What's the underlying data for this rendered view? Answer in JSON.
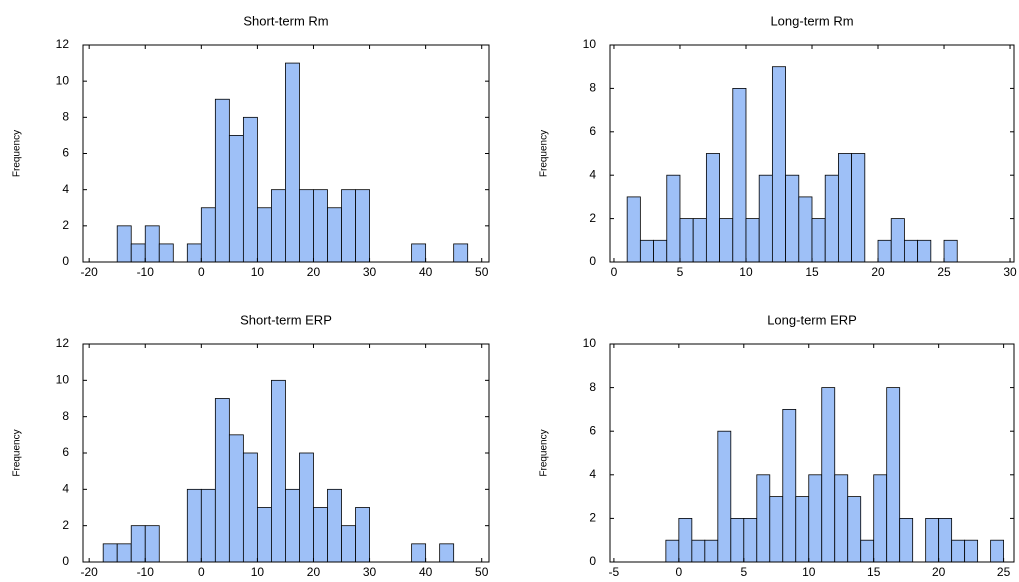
{
  "chart_data": [
    {
      "type": "histogram",
      "title": "Short-term Rm",
      "ylabel": "Frequency",
      "color": "#9ec0f7",
      "bins": [
        -15,
        -12.5,
        -10,
        -7.5,
        -5,
        -2.5,
        0,
        2.5,
        5,
        7.5,
        10,
        12.5,
        15,
        17.5,
        20,
        22.5,
        25,
        27.5,
        30,
        32.5,
        35,
        37.5,
        40,
        42.5,
        45,
        47.5
      ],
      "counts": [
        2,
        1,
        2,
        1,
        0,
        1,
        3,
        9,
        7,
        8,
        3,
        4,
        11,
        4,
        4,
        3,
        4,
        4,
        0,
        0,
        0,
        1,
        0,
        0,
        1
      ],
      "xlim": [
        -21.1,
        51.3
      ],
      "ylim": [
        0,
        12
      ],
      "xticks": [
        -20,
        -10,
        0,
        10,
        20,
        30,
        40,
        50
      ],
      "yticks": [
        0,
        2,
        4,
        6,
        8,
        10,
        12
      ]
    },
    {
      "type": "histogram",
      "title": "Long-term Rm",
      "ylabel": "Frequency",
      "color": "#9ec0f7",
      "bins": [
        1,
        2,
        3,
        4,
        5,
        6,
        7,
        8,
        9,
        10,
        11,
        12,
        13,
        14,
        15,
        16,
        17,
        18,
        19,
        20,
        21,
        22,
        23,
        24,
        25,
        26
      ],
      "counts": [
        3,
        1,
        1,
        4,
        2,
        2,
        5,
        2,
        8,
        2,
        4,
        9,
        4,
        3,
        2,
        4,
        5,
        5,
        0,
        1,
        2,
        1,
        1,
        0,
        1
      ],
      "xlim": [
        -0.3,
        30.3
      ],
      "ylim": [
        0,
        10
      ],
      "xticks": [
        0,
        5,
        10,
        15,
        20,
        25,
        30
      ],
      "yticks": [
        0,
        2,
        4,
        6,
        8,
        10
      ]
    },
    {
      "type": "histogram",
      "title": "Short-term ERP",
      "ylabel": "Frequency",
      "color": "#9ec0f7",
      "bins": [
        -17.5,
        -15,
        -12.5,
        -10,
        -7.5,
        -5,
        -2.5,
        0,
        2.5,
        5,
        7.5,
        10,
        12.5,
        15,
        17.5,
        20,
        22.5,
        25,
        27.5,
        30,
        32.5,
        35,
        37.5,
        40,
        42.5,
        45
      ],
      "counts": [
        1,
        1,
        2,
        2,
        0,
        0,
        4,
        4,
        9,
        7,
        6,
        3,
        10,
        4,
        6,
        3,
        4,
        2,
        3,
        0,
        0,
        0,
        1,
        0,
        1
      ],
      "xlim": [
        -21.1,
        51.3
      ],
      "ylim": [
        0,
        12
      ],
      "xticks": [
        -20,
        -10,
        0,
        10,
        20,
        30,
        40,
        50
      ],
      "yticks": [
        0,
        2,
        4,
        6,
        8,
        10,
        12
      ]
    },
    {
      "type": "histogram",
      "title": "Long-term ERP",
      "ylabel": "Frequency",
      "color": "#9ec0f7",
      "bins": [
        -1,
        0,
        1,
        2,
        3,
        4,
        5,
        6,
        7,
        8,
        9,
        10,
        11,
        12,
        13,
        14,
        15,
        16,
        17,
        18,
        19,
        20,
        21,
        22,
        23,
        24,
        25
      ],
      "counts": [
        1,
        2,
        1,
        1,
        6,
        2,
        2,
        4,
        3,
        7,
        3,
        4,
        8,
        4,
        3,
        1,
        4,
        8,
        2,
        0,
        2,
        2,
        1,
        1,
        0,
        1
      ],
      "xlim": [
        -5.3,
        25.8
      ],
      "ylim": [
        0,
        10
      ],
      "xticks": [
        -5,
        0,
        5,
        10,
        15,
        20,
        25
      ],
      "yticks": [
        0,
        2,
        4,
        6,
        8,
        10
      ]
    }
  ]
}
